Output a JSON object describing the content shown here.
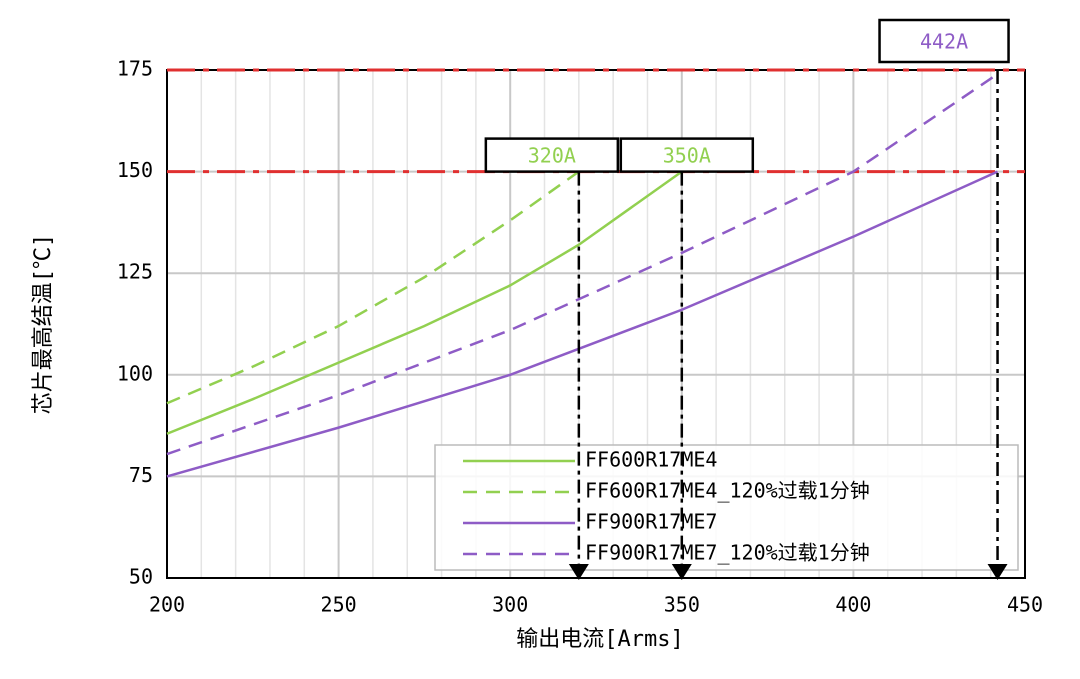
{
  "chart_data": {
    "type": "line",
    "xlabel": "输出电流[Arms]",
    "ylabel": "芯片最高结温[℃]",
    "xlim": [
      200,
      450
    ],
    "ylim": [
      50,
      175
    ],
    "xticks": [
      200,
      250,
      300,
      350,
      400,
      450
    ],
    "yticks": [
      50,
      75,
      100,
      125,
      150,
      175
    ],
    "x_minor_ticks": [
      210,
      220,
      230,
      240,
      260,
      270,
      280,
      290,
      310,
      320,
      330,
      340,
      360,
      370,
      380,
      390,
      410,
      420,
      430,
      440
    ],
    "grid": true,
    "legend": "lower right",
    "series": [
      {
        "name": "FF600R17ME4",
        "color": "#92d050",
        "dash": false,
        "x": [
          200,
          225,
          250,
          275,
          300,
          320,
          335,
          350
        ],
        "values": [
          85.5,
          94,
          103,
          112,
          122,
          132,
          141,
          150
        ]
      },
      {
        "name": "FF600R17ME4_120%过载1分钟",
        "color": "#92d050",
        "dash": true,
        "x": [
          200,
          225,
          250,
          275,
          300,
          320
        ],
        "values": [
          93,
          102,
          112,
          124,
          138,
          150
        ]
      },
      {
        "name": "FF900R17ME7",
        "color": "#8e5cc6",
        "dash": false,
        "x": [
          200,
          250,
          300,
          350,
          400,
          442
        ],
        "values": [
          75,
          87,
          100,
          116,
          134,
          150
        ]
      },
      {
        "name": "FF900R17ME7_120%过载1分钟",
        "color": "#8e5cc6",
        "dash": true,
        "x": [
          200,
          250,
          300,
          350,
          400,
          442
        ],
        "values": [
          80.5,
          95,
          111,
          130,
          150,
          174
        ]
      }
    ],
    "hlines": [
      150,
      175
    ],
    "hline_color": "#e03030",
    "annotations": [
      {
        "text": "320A",
        "x": 320,
        "y": 150,
        "color": "#92d050"
      },
      {
        "text": "350A",
        "x": 350,
        "y": 150,
        "color": "#92d050"
      },
      {
        "text": "442A",
        "x": 442,
        "y": 175,
        "color": "#8e5cc6"
      }
    ]
  }
}
